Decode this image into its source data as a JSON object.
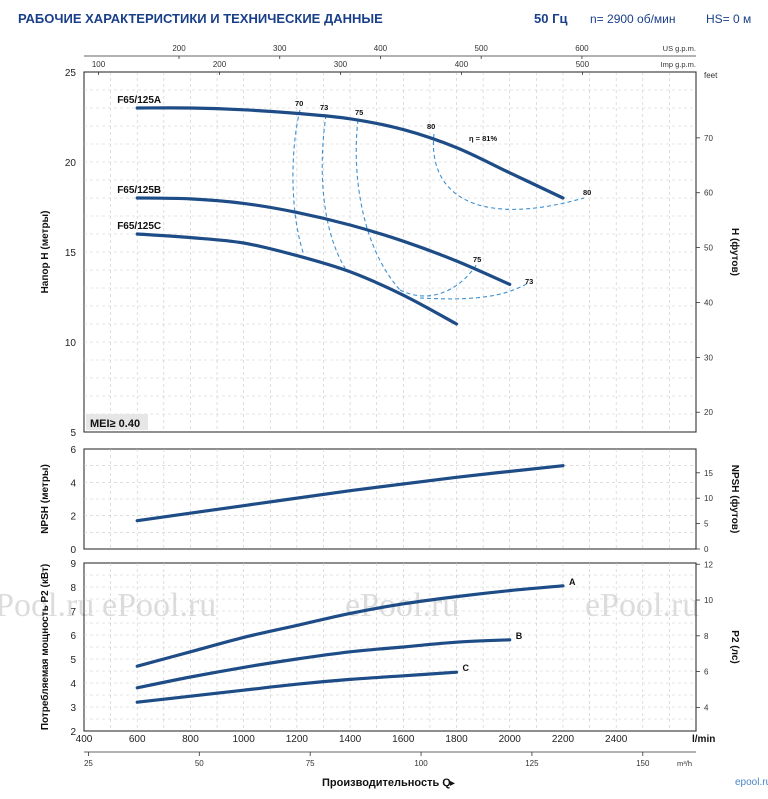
{
  "header": {
    "title": "РАБОЧИЕ ХАРАКТЕРИСТИКИ И ТЕХНИЧЕСКИЕ ДАННЫЕ",
    "frequency": "50 Гц",
    "speed": "n= 2900 об/мин",
    "hs": "HS= 0 м"
  },
  "watermark": {
    "text": "ePool.ru",
    "corner": "epool.ru"
  },
  "colors": {
    "curve": "#1e4c86",
    "efficiency": "#3d8fcf",
    "title": "#1a3f8a"
  },
  "chart_data": [
    {
      "type": "line",
      "name": "head",
      "ylabel": "Напор H (метры)",
      "ylabel2": "H (футов)",
      "ylim": [
        5,
        25
      ],
      "yticks": [
        5,
        10,
        15,
        20,
        25
      ],
      "y2unit": "feet",
      "y2ticks": [
        20,
        30,
        40,
        50,
        60,
        70
      ],
      "topaxes": [
        {
          "unit": "US g.p.m.",
          "ticks": [
            200,
            300,
            400,
            500,
            600
          ]
        },
        {
          "unit": "Imp g.p.m.",
          "ticks": [
            100,
            200,
            300,
            400,
            500
          ]
        }
      ],
      "badge": "MEI≥ 0.40",
      "series": [
        {
          "name": "F65/125A",
          "x": [
            600,
            800,
            1000,
            1200,
            1400,
            1600,
            1800,
            2000,
            2200
          ],
          "y": [
            23.0,
            23.0,
            22.9,
            22.7,
            22.4,
            21.8,
            20.8,
            19.4,
            18.0
          ]
        },
        {
          "name": "F65/125B",
          "x": [
            600,
            800,
            1000,
            1200,
            1400,
            1600,
            1800,
            2000
          ],
          "y": [
            18.0,
            17.95,
            17.7,
            17.2,
            16.5,
            15.6,
            14.5,
            13.2
          ]
        },
        {
          "name": "F65/125C",
          "x": [
            600,
            800,
            1000,
            1200,
            1400,
            1600,
            1800
          ],
          "y": [
            16.0,
            15.8,
            15.5,
            14.8,
            13.9,
            12.6,
            11.0
          ]
        }
      ],
      "efficiency_labels": [
        "70",
        "73",
        "75",
        "80",
        "η = 81%",
        "80",
        "75",
        "73"
      ]
    },
    {
      "type": "line",
      "name": "npsh",
      "ylabel": "NPSH (метры)",
      "ylabel2": "NPSH (футов)",
      "ylim": [
        0,
        6
      ],
      "yticks": [
        0,
        2,
        4,
        6
      ],
      "y2ticks": [
        0,
        5,
        10,
        15
      ],
      "series": [
        {
          "name": "",
          "x": [
            600,
            1000,
            1400,
            1800,
            2200
          ],
          "y": [
            1.7,
            2.6,
            3.5,
            4.3,
            5.0
          ]
        }
      ]
    },
    {
      "type": "line",
      "name": "power",
      "ylabel": "Потребляемая мощность P2 (кВт)",
      "ylabel2": "P2 (лс)",
      "ylim": [
        2,
        9
      ],
      "yticks": [
        2,
        3,
        4,
        5,
        6,
        7,
        8,
        9
      ],
      "y2ticks": [
        4,
        6,
        8,
        10,
        12
      ],
      "series": [
        {
          "name": "A",
          "x": [
            600,
            800,
            1000,
            1200,
            1400,
            1600,
            1800,
            2000,
            2200
          ],
          "y": [
            4.7,
            5.3,
            5.9,
            6.4,
            6.9,
            7.3,
            7.6,
            7.85,
            8.05
          ]
        },
        {
          "name": "B",
          "x": [
            600,
            800,
            1000,
            1200,
            1400,
            1600,
            1800,
            2000
          ],
          "y": [
            3.8,
            4.25,
            4.65,
            5.0,
            5.3,
            5.5,
            5.7,
            5.8
          ]
        },
        {
          "name": "C",
          "x": [
            600,
            800,
            1000,
            1200,
            1400,
            1600,
            1800
          ],
          "y": [
            3.2,
            3.45,
            3.7,
            3.95,
            4.15,
            4.3,
            4.45
          ]
        }
      ]
    }
  ],
  "xaxis": {
    "unit": "l/min",
    "ticks": [
      400,
      600,
      800,
      1000,
      1200,
      1400,
      1600,
      1800,
      2000,
      2200,
      2400
    ],
    "unit2": "m³/h",
    "ticks2": [
      25,
      50,
      75,
      100,
      125,
      150
    ],
    "label": "Производительность Q"
  }
}
